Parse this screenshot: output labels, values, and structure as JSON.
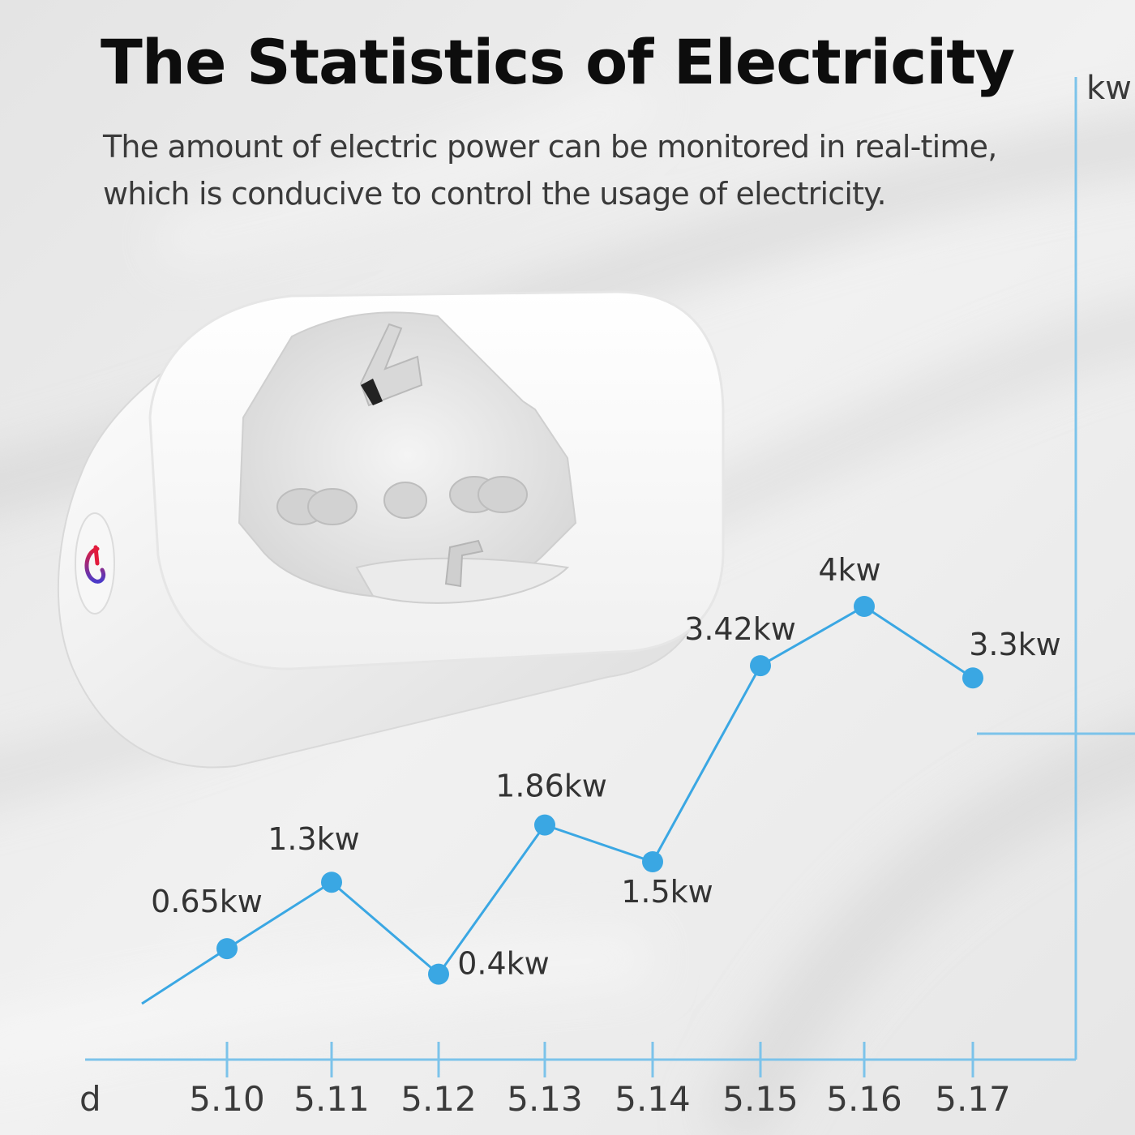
{
  "header": {
    "title": "The Statistics of Electricity",
    "subtitle_lines": [
      "The amount of electric power can be monitored in real-time,",
      "which is conducive to control the usage of electricity."
    ]
  },
  "colors": {
    "accent": "#3aa7e3",
    "axis": "#7cc3ea",
    "title": "#0d0d0d",
    "subtitle": "#3a3a3a",
    "power_icon": "#d6213a"
  },
  "product": {
    "icon": "smart-plug-socket-icon",
    "button_icon": "power-icon"
  },
  "chart_data": {
    "type": "line",
    "xlabel": "d",
    "ylabel": "kw",
    "categories": [
      "5.10",
      "5.11",
      "5.12",
      "5.13",
      "5.14",
      "5.15",
      "5.16",
      "5.17"
    ],
    "values": [
      0.65,
      1.3,
      0.4,
      1.86,
      1.5,
      3.42,
      4,
      3.3
    ],
    "point_labels": [
      "0.65kw",
      "1.3kw",
      "0.4kw",
      "1.86kw",
      "1.5kw",
      "3.42kw",
      "4kw",
      "3.3kw"
    ],
    "ylim": [
      0,
      4.5
    ],
    "grid": false,
    "legend": "none"
  }
}
